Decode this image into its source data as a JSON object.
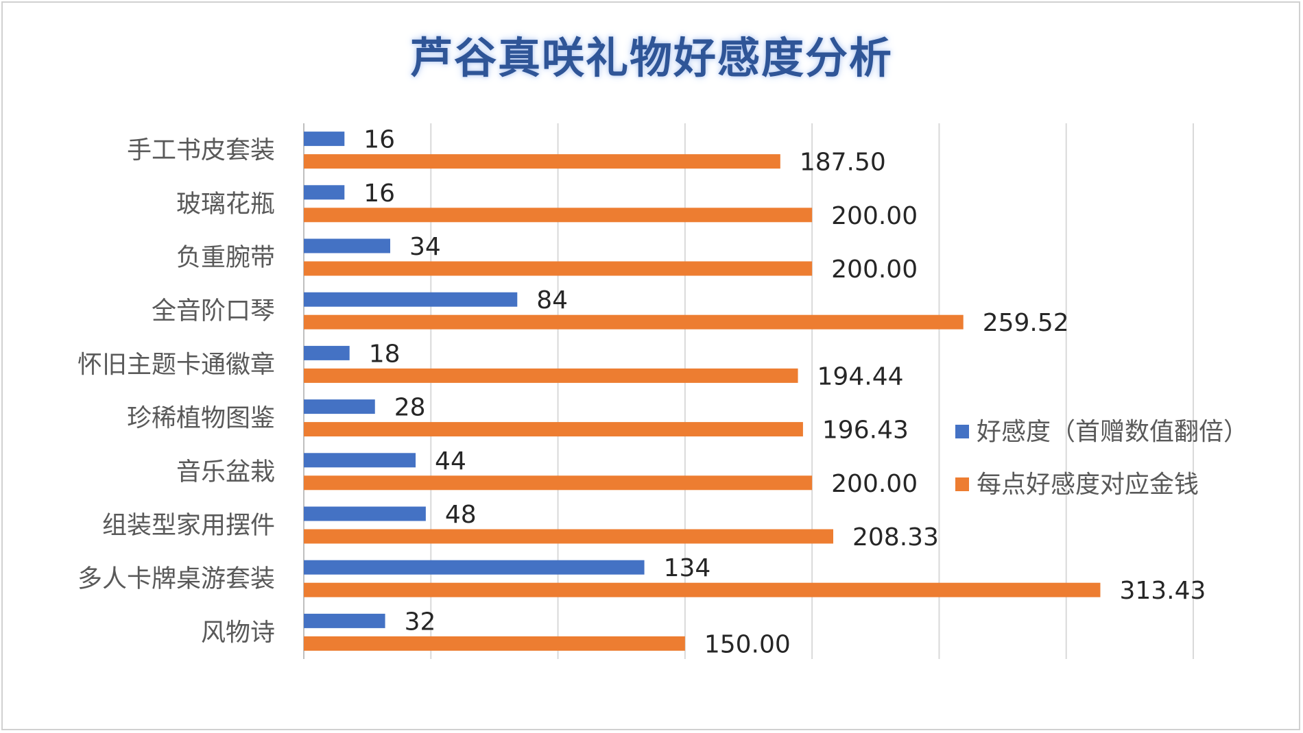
{
  "chart_data": {
    "type": "bar",
    "orientation": "horizontal",
    "title": "芦谷真咲礼物好感度分析",
    "categories": [
      "手工书皮套装",
      "玻璃花瓶",
      "负重腕带",
      "全音阶口琴",
      "怀旧主题卡通徽章",
      "珍稀植物图鉴",
      "音乐盆栽",
      "组装型家用摆件",
      "多人卡牌桌游套装",
      "风物诗"
    ],
    "series": [
      {
        "name": "好感度（首赠数值翻倍）",
        "color": "#4472c4",
        "values": [
          16,
          16,
          34,
          84,
          18,
          28,
          44,
          48,
          134,
          32
        ],
        "labels": [
          "16",
          "16",
          "34",
          "84",
          "18",
          "28",
          "44",
          "48",
          "134",
          "32"
        ]
      },
      {
        "name": "每点好感度对应金钱",
        "color": "#ed7d31",
        "values": [
          187.5,
          200.0,
          200.0,
          259.52,
          194.44,
          196.43,
          200.0,
          208.33,
          313.43,
          150.0
        ],
        "labels": [
          "187.50",
          "200.00",
          "200.00",
          "259.52",
          "194.44",
          "196.43",
          "200.00",
          "208.33",
          "313.43",
          "150.00"
        ]
      }
    ],
    "xlim": [
      0,
      350
    ],
    "grid": true,
    "legend_position": "right"
  }
}
